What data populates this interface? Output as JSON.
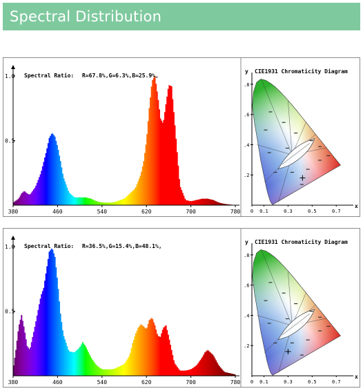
{
  "header": {
    "title": "Spectral Distribution"
  },
  "panels": [
    {
      "spectral_ratio_label": "Spectral Ratio:",
      "spectral_ratio_value": "R=67.8%,G=6.3%,B=25.9%,",
      "cie_title": "CIE1931 Chromaticity Diagram",
      "cie_marker": [
        0.42,
        0.18
      ]
    },
    {
      "spectral_ratio_label": "Spectral Ratio:",
      "spectral_ratio_value": "R=36.5%,G=15.4%,B=48.1%,",
      "cie_title": "CIE1931 Chromaticity Diagram",
      "cie_marker": [
        0.3,
        0.16
      ]
    }
  ],
  "cie_axis": {
    "y_label": "y",
    "x_label": "x",
    "x_ticks": [
      "0",
      "0.1",
      "0.3",
      "0.5",
      "0.7"
    ],
    "x_tick_values": [
      0,
      0.1,
      0.3,
      0.5,
      0.7
    ],
    "y_ticks": [
      ".2",
      ".4",
      ".6",
      ".8"
    ],
    "y_tick_values": [
      0.2,
      0.4,
      0.6,
      0.8
    ]
  },
  "chart_data": [
    {
      "type": "area",
      "xlim": [
        380,
        780
      ],
      "ylim": [
        0,
        1.0
      ],
      "x_ticks": [
        "380",
        "460",
        "540",
        "620",
        "700",
        "780"
      ],
      "x_tick_values": [
        380,
        460,
        540,
        620,
        700,
        780
      ],
      "y_ticks": [
        "1.0",
        "0.5"
      ],
      "y_tick_values": [
        1.0,
        0.5
      ],
      "x": [
        380,
        390,
        395,
        400,
        405,
        410,
        420,
        430,
        440,
        445,
        450,
        455,
        460,
        465,
        470,
        480,
        490,
        500,
        510,
        520,
        530,
        540,
        560,
        580,
        600,
        610,
        615,
        620,
        625,
        630,
        635,
        640,
        645,
        650,
        655,
        660,
        665,
        670,
        680,
        690,
        700,
        710,
        720,
        730,
        740,
        750,
        760,
        780
      ],
      "values": [
        0.02,
        0.05,
        0.09,
        0.11,
        0.09,
        0.08,
        0.14,
        0.25,
        0.42,
        0.52,
        0.56,
        0.53,
        0.45,
        0.34,
        0.22,
        0.1,
        0.06,
        0.06,
        0.06,
        0.05,
        0.03,
        0.02,
        0.02,
        0.05,
        0.13,
        0.24,
        0.34,
        0.5,
        0.75,
        0.96,
        1.0,
        0.85,
        0.67,
        0.63,
        0.78,
        0.93,
        0.92,
        0.67,
        0.15,
        0.04,
        0.03,
        0.04,
        0.05,
        0.05,
        0.04,
        0.02,
        0.01,
        0.0
      ]
    },
    {
      "type": "area",
      "xlim": [
        380,
        780
      ],
      "ylim": [
        0,
        1.0
      ],
      "x_ticks": [
        "380",
        "460",
        "540",
        "620",
        "700",
        "780"
      ],
      "x_tick_values": [
        380,
        460,
        540,
        620,
        700,
        780
      ],
      "y_ticks": [
        "1.0",
        "0.5"
      ],
      "y_tick_values": [
        1.0,
        0.5
      ],
      "x": [
        380,
        385,
        390,
        395,
        400,
        405,
        410,
        420,
        430,
        435,
        440,
        445,
        450,
        455,
        460,
        465,
        470,
        480,
        490,
        500,
        505,
        510,
        520,
        530,
        540,
        560,
        580,
        590,
        595,
        600,
        605,
        610,
        615,
        620,
        625,
        630,
        635,
        640,
        645,
        650,
        655,
        660,
        670,
        680,
        690,
        700,
        710,
        720,
        725,
        730,
        740,
        750,
        760,
        780
      ],
      "values": [
        0.05,
        0.2,
        0.38,
        0.47,
        0.36,
        0.23,
        0.2,
        0.4,
        0.62,
        0.68,
        0.82,
        0.96,
        0.99,
        0.92,
        0.72,
        0.48,
        0.32,
        0.19,
        0.18,
        0.22,
        0.26,
        0.23,
        0.14,
        0.08,
        0.05,
        0.05,
        0.09,
        0.16,
        0.25,
        0.32,
        0.37,
        0.4,
        0.38,
        0.36,
        0.43,
        0.45,
        0.39,
        0.31,
        0.3,
        0.37,
        0.39,
        0.3,
        0.1,
        0.04,
        0.04,
        0.05,
        0.08,
        0.14,
        0.18,
        0.2,
        0.16,
        0.08,
        0.03,
        0.01
      ]
    }
  ]
}
